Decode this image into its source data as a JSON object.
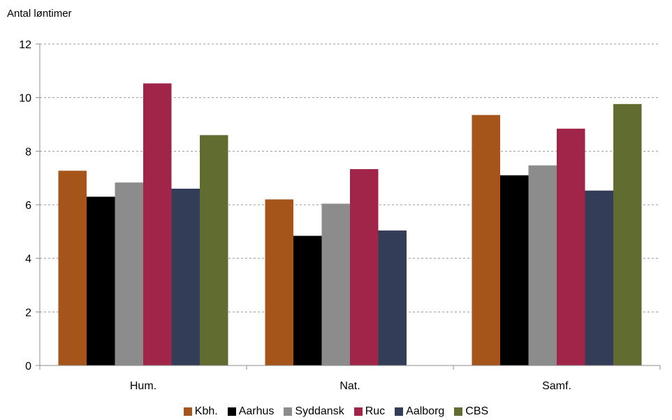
{
  "chart_data": {
    "type": "bar",
    "ylabel": "Antal løntimer",
    "categories": [
      "Hum.",
      "Nat.",
      "Samf."
    ],
    "ylim": [
      0,
      12
    ],
    "yticks": [
      0,
      2,
      4,
      6,
      8,
      10,
      12
    ],
    "grid": true,
    "legend_position": "bottom",
    "series": [
      {
        "name": "Kbh.",
        "color": "#A5541A",
        "values": [
          7.27,
          6.2,
          9.35
        ]
      },
      {
        "name": "Aarhus",
        "color": "#000000",
        "values": [
          6.3,
          4.84,
          7.1
        ]
      },
      {
        "name": "Syddansk",
        "color": "#8C8C8C",
        "values": [
          6.83,
          6.04,
          7.47
        ]
      },
      {
        "name": "Ruc",
        "color": "#A12548",
        "values": [
          10.53,
          7.33,
          8.84
        ]
      },
      {
        "name": "Aalborg",
        "color": "#333D58",
        "values": [
          6.6,
          5.04,
          6.53
        ]
      },
      {
        "name": "CBS",
        "color": "#616C31",
        "values": [
          8.6,
          null,
          9.76
        ]
      }
    ]
  }
}
